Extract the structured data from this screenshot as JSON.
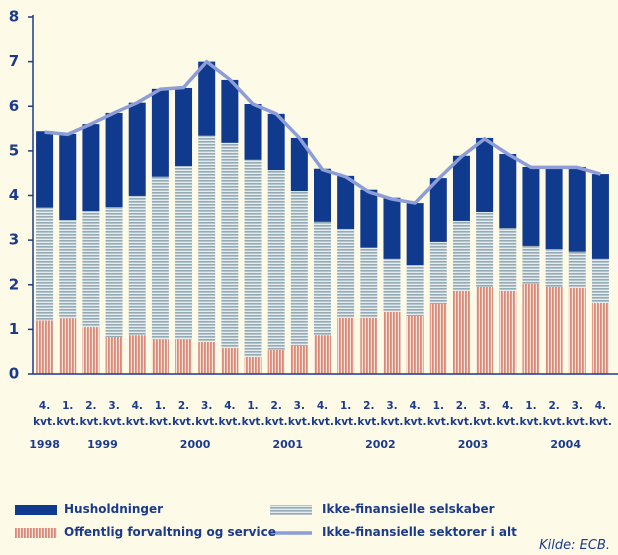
{
  "chart_data": {
    "type": "bar",
    "categories": [
      "4. kvt.",
      "1. kvt.",
      "2. kvt.",
      "3. kvt.",
      "4. kvt.",
      "1. kvt.",
      "2. kvt.",
      "3. kvt.",
      "4. kvt.",
      "1. kvt.",
      "2. kvt.",
      "3. kvt.",
      "4. kvt.",
      "1. kvt.",
      "2. kvt.",
      "3. kvt.",
      "4. kvt.",
      "1. kvt.",
      "2. kvt.",
      "3. kvt.",
      "4. kvt.",
      "1. kvt.",
      "2. kvt.",
      "3. kvt.",
      "4. kvt."
    ],
    "years": [
      "1998",
      null,
      "1999",
      null,
      null,
      null,
      "2000",
      null,
      null,
      null,
      "2001",
      null,
      null,
      null,
      "2002",
      null,
      null,
      null,
      "2003",
      null,
      null,
      null,
      "2004",
      null,
      null
    ],
    "series": [
      {
        "name": "Offentlig forvaltning og service",
        "type": "bar",
        "color": "#d98a78",
        "pattern": "vertical-stripes",
        "values": [
          1.2,
          1.25,
          1.05,
          0.83,
          0.87,
          0.78,
          0.78,
          0.72,
          0.58,
          0.38,
          0.54,
          0.63,
          0.87,
          1.26,
          1.26,
          1.39,
          1.3,
          1.57,
          1.86,
          1.95,
          1.86,
          2.02,
          1.95,
          1.93,
          1.59
        ]
      },
      {
        "name": "Ikke-finansielle selskaber",
        "type": "bar",
        "color": "#94aab4",
        "pattern": "horizontal-stripes",
        "values": [
          2.53,
          2.2,
          2.6,
          2.91,
          3.12,
          3.64,
          3.88,
          4.62,
          4.6,
          4.42,
          4.03,
          3.47,
          2.54,
          1.99,
          1.57,
          1.19,
          1.14,
          1.39,
          1.57,
          1.68,
          1.41,
          0.85,
          0.85,
          0.81,
          0.99
        ]
      },
      {
        "name": "Husholdninger",
        "type": "bar",
        "color": "#0f3a8e",
        "pattern": "solid",
        "values": [
          1.71,
          1.93,
          1.95,
          2.11,
          2.09,
          1.97,
          1.75,
          1.66,
          1.41,
          1.25,
          1.26,
          1.19,
          1.19,
          1.19,
          1.3,
          1.37,
          1.39,
          1.43,
          1.46,
          1.66,
          1.66,
          1.77,
          1.84,
          1.9,
          1.9
        ]
      },
      {
        "name": "Ikke-finansielle sektorer i alt",
        "type": "line",
        "color": "#8c9dd8",
        "values": [
          5.42,
          5.37,
          5.6,
          5.85,
          6.08,
          6.38,
          6.42,
          7.0,
          6.6,
          6.05,
          5.83,
          5.29,
          4.58,
          4.42,
          4.08,
          3.92,
          3.83,
          4.37,
          4.87,
          5.27,
          4.93,
          4.63,
          4.63,
          4.63,
          4.48
        ]
      }
    ],
    "ylim": [
      0,
      8
    ],
    "yticks": [
      0,
      1,
      2,
      3,
      4,
      5,
      6,
      7,
      8
    ],
    "source": "Kilde: ECB."
  }
}
